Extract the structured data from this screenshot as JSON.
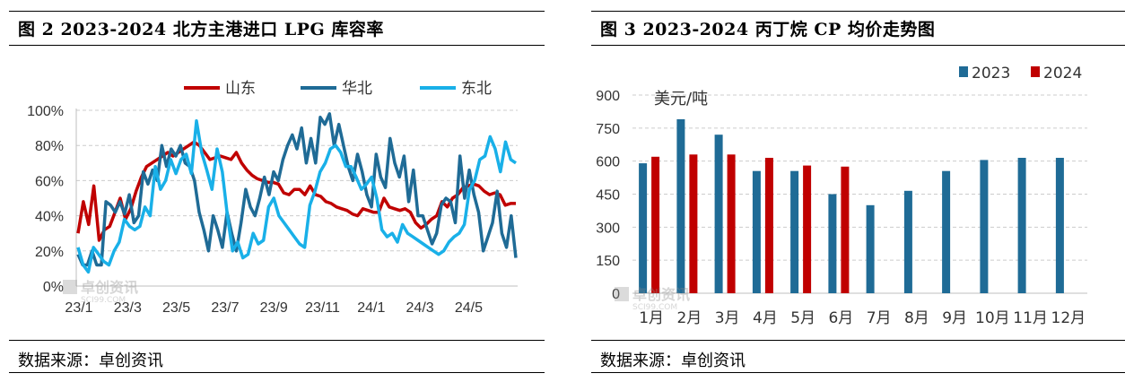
{
  "left": {
    "title": "图 2 2023-2024 北方主港进口 LPG 库容率",
    "source": "数据来源：卓创资讯",
    "watermark": {
      "brand": "卓创资讯",
      "site": "SCI99.COM"
    }
  },
  "right": {
    "title": "图 3 2023-2024 丙丁烷 CP 均价走势图",
    "source": "数据来源：卓创资讯",
    "watermark": {
      "brand": "卓创资讯",
      "site": "SCI99.COM"
    }
  },
  "colors": {
    "shandong": "#c00000",
    "huabei": "#1f6b96",
    "dongbei": "#19b0e8",
    "y2023": "#1f6b96",
    "y2024": "#c00000",
    "grid": "#cccccc"
  },
  "chart_data": [
    {
      "type": "line",
      "title": "2023-2024 北方主港进口 LPG 库容率",
      "ylim": [
        0,
        100
      ],
      "yticks": [
        "0%",
        "20%",
        "40%",
        "60%",
        "80%",
        "100%"
      ],
      "xticks": [
        "23/1",
        "23/3",
        "23/5",
        "23/7",
        "23/9",
        "23/11",
        "24/1",
        "24/3",
        "24/5"
      ],
      "grid": true,
      "legend": "top",
      "series": [
        {
          "name": "山东",
          "values": [
            30,
            48,
            35,
            57,
            26,
            32,
            34,
            42,
            50,
            38,
            44,
            54,
            62,
            68,
            70,
            72,
            74,
            76,
            74,
            76,
            78,
            80,
            82,
            80,
            76,
            72,
            73,
            74,
            73,
            72,
            76,
            70,
            66,
            63,
            61,
            60,
            59,
            59,
            58,
            53,
            52,
            55,
            55,
            52,
            57,
            52,
            51,
            48,
            47,
            45,
            44,
            43,
            41,
            40,
            44,
            43,
            42,
            42,
            50,
            45,
            44,
            43,
            44,
            42,
            36,
            33,
            35,
            38,
            40,
            48,
            45,
            50,
            52,
            56,
            57,
            58,
            57,
            54,
            52,
            53,
            52,
            46,
            47,
            47
          ]
        },
        {
          "name": "华北",
          "values": [
            18,
            12,
            12,
            20,
            12,
            12,
            48,
            46,
            42,
            48,
            41,
            52,
            36,
            40,
            65,
            58,
            66,
            60,
            80,
            68,
            78,
            74,
            80,
            70,
            68,
            60,
            42,
            32,
            20,
            40,
            32,
            22,
            42,
            30,
            20,
            36,
            55,
            45,
            40,
            50,
            62,
            52,
            65,
            60,
            72,
            80,
            86,
            78,
            90,
            70,
            84,
            70,
            96,
            92,
            98,
            80,
            92,
            80,
            68,
            60,
            75,
            65,
            52,
            45,
            75,
            62,
            56,
            84,
            70,
            62,
            74,
            48,
            66,
            40,
            40,
            32,
            24,
            30,
            46,
            50,
            48,
            36,
            74,
            50,
            66,
            52,
            42,
            20,
            28,
            36,
            54,
            30,
            22,
            40,
            16
          ]
        },
        {
          "name": "东北",
          "values": [
            22,
            12,
            8,
            22,
            18,
            14,
            12,
            20,
            25,
            38,
            34,
            32,
            34,
            45,
            40,
            68,
            55,
            60,
            72,
            64,
            72,
            75,
            64,
            94,
            76,
            66,
            55,
            78,
            65,
            40,
            20,
            25,
            16,
            18,
            30,
            24,
            26,
            45,
            50,
            40,
            36,
            32,
            28,
            24,
            22,
            46,
            54,
            65,
            70,
            78,
            80,
            76,
            68,
            68,
            62,
            55,
            58,
            62,
            50,
            32,
            28,
            30,
            25,
            35,
            30,
            28,
            26,
            24,
            22,
            20,
            18,
            20,
            25,
            28,
            30,
            35,
            55,
            60,
            72,
            74,
            85,
            78,
            65,
            82,
            72,
            70
          ]
        }
      ]
    },
    {
      "type": "bar",
      "title": "2023-2024 丙丁烷 CP 均价走势图",
      "ylabel": "美元/吨",
      "ylim": [
        0,
        900
      ],
      "yticks": [
        "0",
        "150",
        "300",
        "450",
        "600",
        "750",
        "900"
      ],
      "grid": true,
      "legend": "top-right",
      "categories": [
        "1月",
        "2月",
        "3月",
        "4月",
        "5月",
        "6月",
        "7月",
        "8月",
        "9月",
        "10月",
        "11月",
        "12月"
      ],
      "series": [
        {
          "name": "2023",
          "values": [
            590,
            790,
            720,
            555,
            555,
            450,
            400,
            465,
            555,
            605,
            615,
            615
          ]
        },
        {
          "name": "2024",
          "values": [
            620,
            630,
            630,
            615,
            580,
            575,
            null,
            null,
            null,
            null,
            null,
            null
          ]
        }
      ]
    }
  ]
}
